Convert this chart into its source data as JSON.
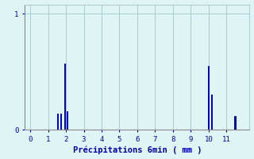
{
  "title": "",
  "xlabel": "Précipitations 6min ( mm )",
  "ylabel": "",
  "xlim": [
    -0.3,
    12.3
  ],
  "ylim": [
    0,
    1.08
  ],
  "yticks": [
    0,
    1
  ],
  "xticks": [
    0,
    1,
    2,
    3,
    4,
    5,
    6,
    7,
    8,
    9,
    10,
    11
  ],
  "bar_positions": [
    1.55,
    1.72,
    1.95,
    2.08,
    10.0,
    10.18,
    11.5
  ],
  "bar_heights": [
    0.14,
    0.14,
    0.57,
    0.16,
    0.55,
    0.3,
    0.12
  ],
  "bar_width": 0.1,
  "bar_color": "#0000cc",
  "bg_color": "#dff4f4",
  "grid_color": "#aacccc",
  "axis_color": "#888888",
  "label_color": "#0000aa",
  "tick_color": "#0000aa",
  "xlabel_fontsize": 7.5,
  "tick_fontsize": 6.5
}
